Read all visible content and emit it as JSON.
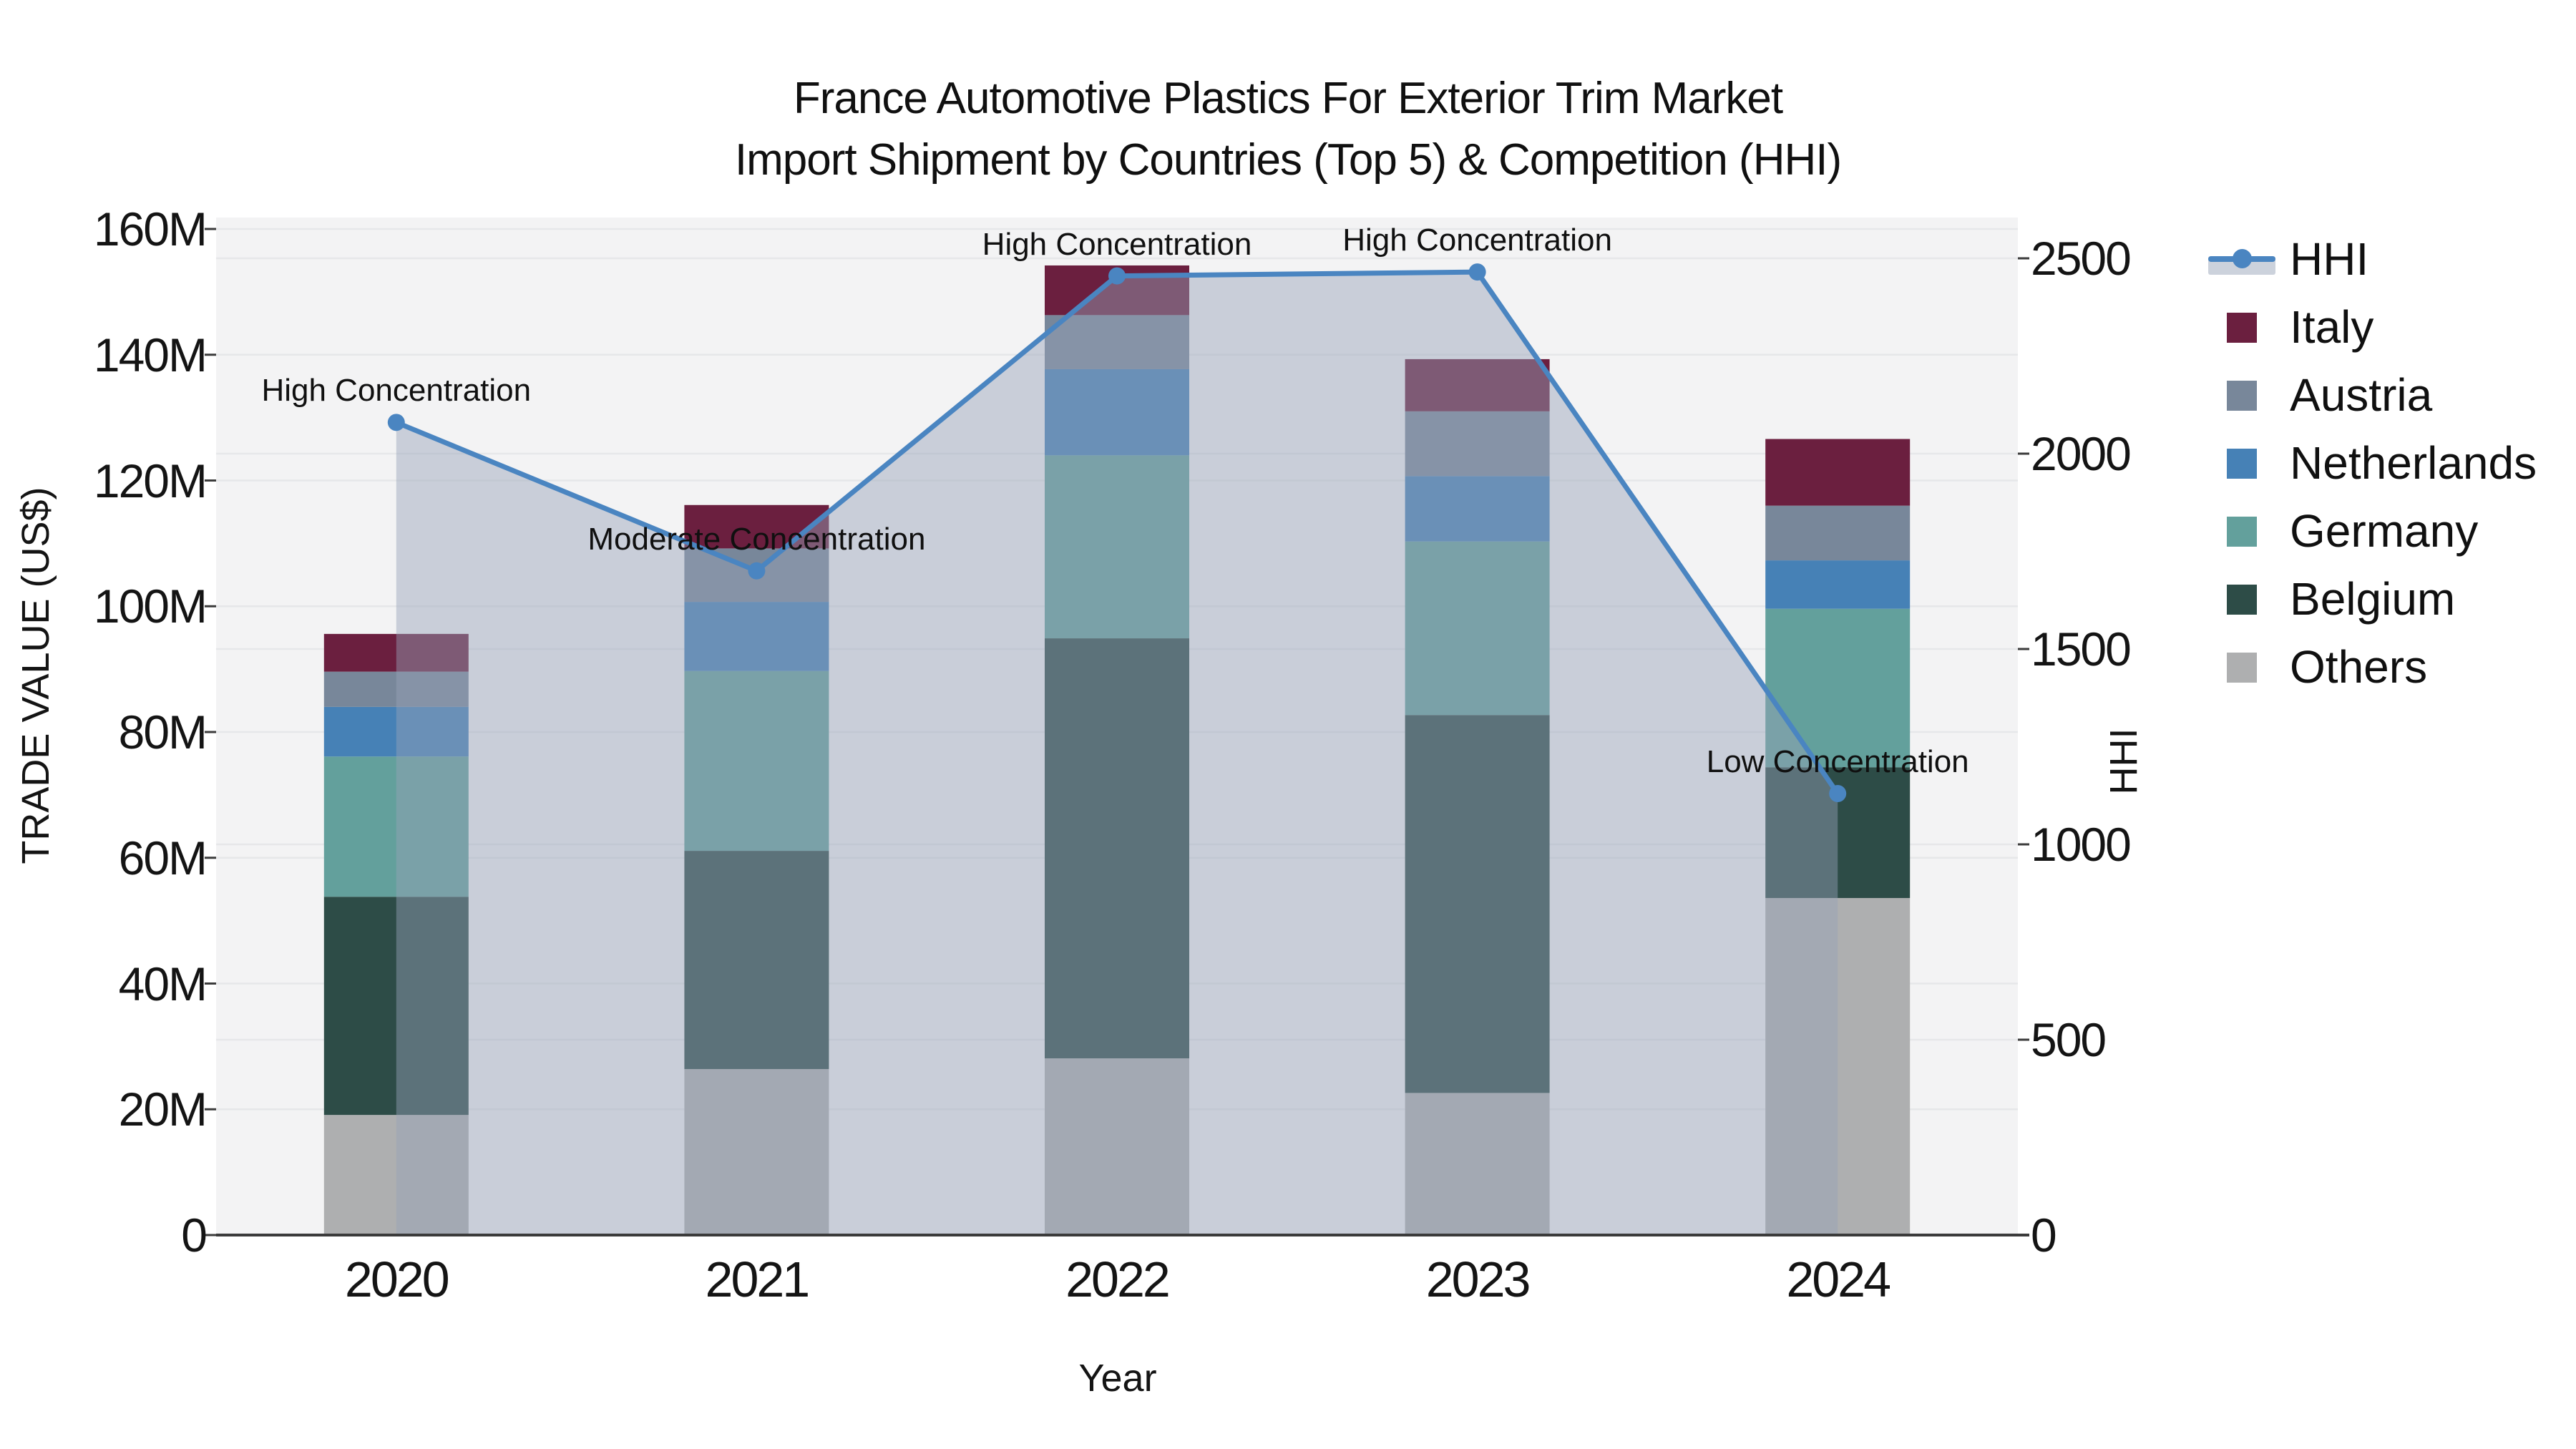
{
  "title": {
    "line1": "France Automotive Plastics For Exterior Trim Market",
    "line2": "Import Shipment by Countries (Top 5) & Competition (HHI)"
  },
  "axes": {
    "left": {
      "title": "TRADE VALUE (US$)",
      "tick_labels": [
        "0",
        "20M",
        "40M",
        "60M",
        "80M",
        "100M",
        "120M",
        "140M",
        "160M"
      ],
      "range_millions": [
        0,
        160
      ]
    },
    "right": {
      "title": "HHI",
      "tick_labels": [
        "0",
        "500",
        "1000",
        "1500",
        "2000",
        "2500"
      ],
      "range": [
        0,
        2500
      ]
    },
    "x": {
      "title": "Year",
      "tick_labels": [
        "2020",
        "2021",
        "2022",
        "2023",
        "2024"
      ]
    }
  },
  "legend": {
    "items": [
      {
        "label": "HHI",
        "type": "line",
        "color": "#4A85C1"
      },
      {
        "label": "Italy",
        "type": "swatch",
        "color": "#6B1F3F"
      },
      {
        "label": "Austria",
        "type": "swatch",
        "color": "#78879A"
      },
      {
        "label": "Netherlands",
        "type": "swatch",
        "color": "#4681B6"
      },
      {
        "label": "Germany",
        "type": "swatch",
        "color": "#63A09C"
      },
      {
        "label": "Belgium",
        "type": "swatch",
        "color": "#2D4C47"
      },
      {
        "label": "Others",
        "type": "swatch",
        "color": "#AEAFB0"
      }
    ]
  },
  "chart_data": {
    "type": "bar",
    "subtype": "stacked-bars-with-line-overlay",
    "categories": [
      "2020",
      "2021",
      "2022",
      "2023",
      "2024"
    ],
    "value_unit": "US$ millions",
    "stack_order_bottom_to_top": [
      "Others",
      "Belgium",
      "Germany",
      "Netherlands",
      "Austria",
      "Italy"
    ],
    "series": [
      {
        "name": "Italy",
        "color": "#6B1F3F",
        "values": [
          6.0,
          6.9,
          7.9,
          8.3,
          10.6
        ]
      },
      {
        "name": "Austria",
        "color": "#78879A",
        "values": [
          5.6,
          8.5,
          8.6,
          10.3,
          8.7
        ]
      },
      {
        "name": "Netherlands",
        "color": "#4681B6",
        "values": [
          7.9,
          11.0,
          13.7,
          10.4,
          7.7
        ]
      },
      {
        "name": "Germany",
        "color": "#63A09C",
        "values": [
          22.3,
          28.6,
          29.1,
          27.6,
          25.2
        ]
      },
      {
        "name": "Belgium",
        "color": "#2D4C47",
        "values": [
          34.7,
          34.7,
          66.8,
          60.1,
          20.8
        ]
      },
      {
        "name": "Others",
        "color": "#AEAFB0",
        "values": [
          19.1,
          26.4,
          28.1,
          22.6,
          53.6
        ]
      }
    ],
    "bar_totals_millions": [
      95.6,
      116.1,
      154.2,
      139.3,
      126.6
    ],
    "line_series": {
      "name": "HHI",
      "axis": "right",
      "color": "#4A85C1",
      "area_fill": "rgba(150,161,185,0.45)",
      "values": [
        2080,
        1700,
        2455,
        2465,
        1130
      ],
      "point_labels": [
        "High Concentration",
        "Moderate Concentration",
        "High Concentration",
        "High Concentration",
        "Low Concentration"
      ]
    },
    "ylabel": "TRADE VALUE (US$)",
    "y2label": "HHI",
    "xlabel": "Year",
    "ylim_millions": [
      0,
      160
    ],
    "y2lim": [
      0,
      2500
    ],
    "grid": true,
    "legend_position": "right"
  },
  "colors": {
    "plot_background": "#F3F3F4",
    "page_background": "#FFFFFF",
    "gridline": "#E6E7E9",
    "axis_line": "#3B3B3B",
    "text": "#101010",
    "hhi_legend_band": "#CCD2DC"
  }
}
